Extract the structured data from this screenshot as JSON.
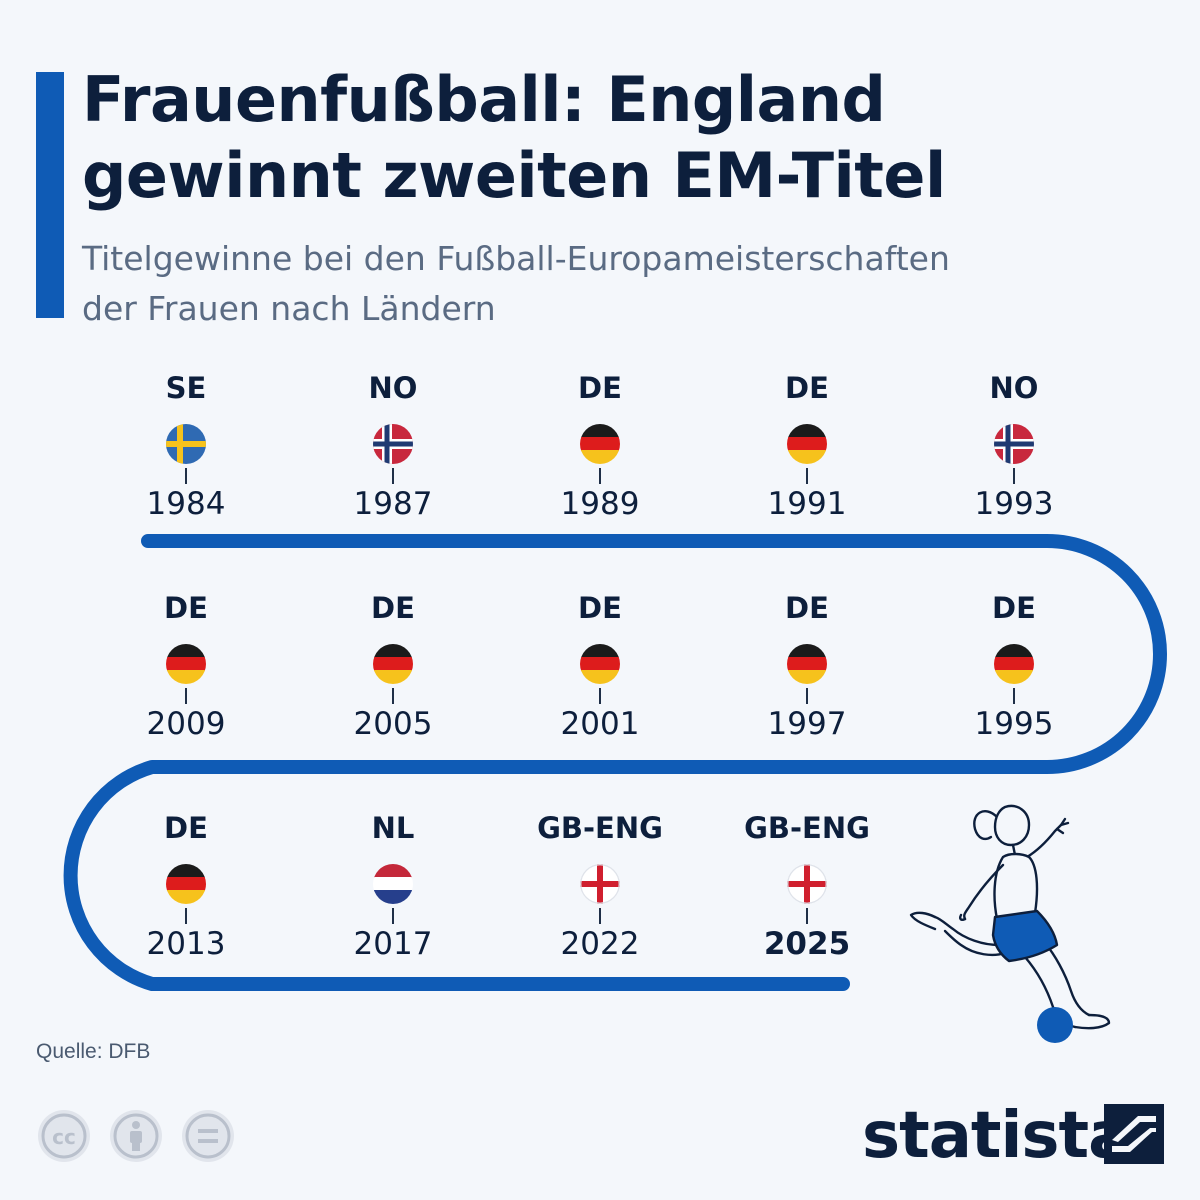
{
  "header": {
    "title_line1": "Frauenfußball: England",
    "title_line2": "gewinnt zweiten EM-Titel",
    "subtitle_line1": "Titelgewinne bei den Fußball-Europameisterschaften",
    "subtitle_line2": "der Frauen nach Ländern"
  },
  "timeline": {
    "winners": [
      {
        "code": "SE",
        "year": "1984",
        "flag": "flag-sweden-icon"
      },
      {
        "code": "NO",
        "year": "1987",
        "flag": "flag-norway-icon"
      },
      {
        "code": "DE",
        "year": "1989",
        "flag": "flag-germany-icon"
      },
      {
        "code": "DE",
        "year": "1991",
        "flag": "flag-germany-icon"
      },
      {
        "code": "NO",
        "year": "1993",
        "flag": "flag-norway-icon"
      },
      {
        "code": "DE",
        "year": "1995",
        "flag": "flag-germany-icon"
      },
      {
        "code": "DE",
        "year": "1997",
        "flag": "flag-germany-icon"
      },
      {
        "code": "DE",
        "year": "2001",
        "flag": "flag-germany-icon"
      },
      {
        "code": "DE",
        "year": "2005",
        "flag": "flag-germany-icon"
      },
      {
        "code": "DE",
        "year": "2009",
        "flag": "flag-germany-icon"
      },
      {
        "code": "DE",
        "year": "2013",
        "flag": "flag-germany-icon"
      },
      {
        "code": "NL",
        "year": "2017",
        "flag": "flag-netherlands-icon"
      },
      {
        "code": "GB-ENG",
        "year": "2022",
        "flag": "flag-england-icon"
      },
      {
        "code": "GB-ENG",
        "year": "2025",
        "flag": "flag-england-icon",
        "highlight": true
      }
    ]
  },
  "footer": {
    "source": "Quelle: DFB",
    "brand": "statista"
  },
  "colors": {
    "accent": "#0f5bb5",
    "background": "#f4f7fb",
    "text": "#0d1f3c"
  }
}
